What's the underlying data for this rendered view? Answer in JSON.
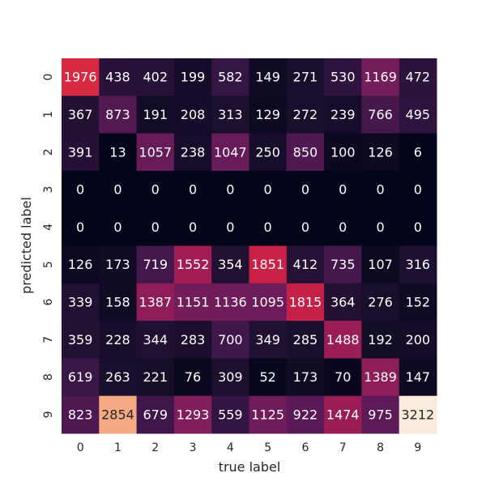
{
  "chart_data": {
    "type": "heatmap",
    "title": "",
    "xlabel": "true label",
    "ylabel": "predicted label",
    "x_categories": [
      "0",
      "1",
      "2",
      "3",
      "4",
      "5",
      "6",
      "7",
      "8",
      "9"
    ],
    "y_categories": [
      "0",
      "1",
      "2",
      "3",
      "4",
      "5",
      "6",
      "7",
      "8",
      "9"
    ],
    "values": [
      [
        1976,
        438,
        402,
        199,
        582,
        149,
        271,
        530,
        1169,
        472
      ],
      [
        367,
        873,
        191,
        208,
        313,
        129,
        272,
        239,
        766,
        495
      ],
      [
        391,
        13,
        1057,
        238,
        1047,
        250,
        850,
        100,
        126,
        6
      ],
      [
        0,
        0,
        0,
        0,
        0,
        0,
        0,
        0,
        0,
        0
      ],
      [
        0,
        0,
        0,
        0,
        0,
        0,
        0,
        0,
        0,
        0
      ],
      [
        126,
        173,
        719,
        1552,
        354,
        1851,
        412,
        735,
        107,
        316
      ],
      [
        339,
        158,
        1387,
        1151,
        1136,
        1095,
        1815,
        364,
        276,
        152
      ],
      [
        359,
        228,
        344,
        283,
        700,
        349,
        285,
        1488,
        192,
        200
      ],
      [
        619,
        263,
        221,
        76,
        309,
        52,
        173,
        70,
        1389,
        147
      ],
      [
        823,
        2854,
        679,
        1293,
        559,
        1125,
        922,
        1474,
        975,
        3212
      ]
    ],
    "value_range": [
      0,
      3212
    ],
    "colormap": "rocket",
    "grid": false,
    "colorbar": false
  }
}
